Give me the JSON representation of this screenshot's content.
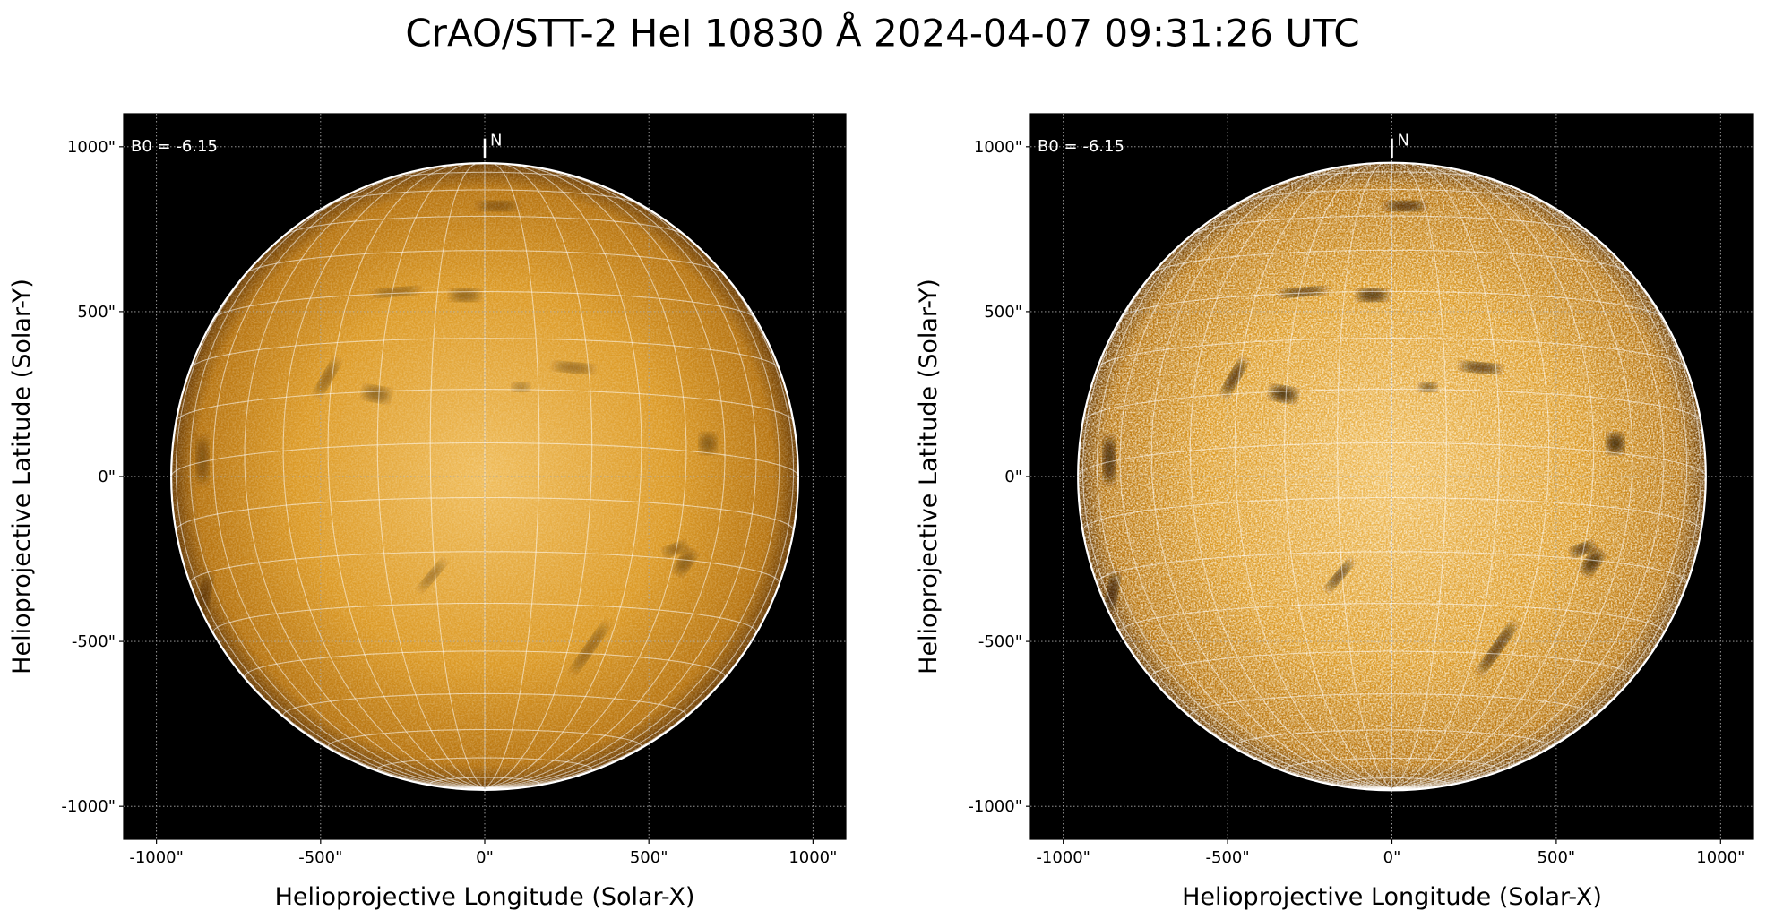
{
  "title": "CrAO/STT-2 HeI 10830 Å 2024-04-07 09:31:26 UTC",
  "chart_data": [
    {
      "type": "image",
      "xlabel": "Helioprojective Longitude (Solar-X)",
      "ylabel": "Helioprojective Latitude (Solar-Y)",
      "xlim": [
        -1100,
        1100
      ],
      "ylim": [
        -1100,
        1100
      ],
      "xticks": [
        {
          "value": -1000,
          "label": "-1000\""
        },
        {
          "value": -500,
          "label": "-500\""
        },
        {
          "value": 0,
          "label": "0\""
        },
        {
          "value": 500,
          "label": "500\""
        },
        {
          "value": 1000,
          "label": "1000\""
        }
      ],
      "yticks": [
        {
          "value": -1000,
          "label": "-1000\""
        },
        {
          "value": -500,
          "label": "-500\""
        },
        {
          "value": 0,
          "label": "0\""
        },
        {
          "value": 500,
          "label": "500\""
        },
        {
          "value": 1000,
          "label": "1000\""
        }
      ],
      "grid": true,
      "annotations": [
        "B0 = -6.15",
        "N"
      ],
      "b0": -6.15,
      "disk_radius": 955,
      "heliographic_grid_deg": 10,
      "contrast": 1.0
    },
    {
      "type": "image",
      "xlabel": "Helioprojective Longitude (Solar-X)",
      "ylabel": "Helioprojective Latitude (Solar-Y)",
      "xlim": [
        -1100,
        1100
      ],
      "ylim": [
        -1100,
        1100
      ],
      "xticks": [
        {
          "value": -1000,
          "label": "-1000\""
        },
        {
          "value": -500,
          "label": "-500\""
        },
        {
          "value": 0,
          "label": "0\""
        },
        {
          "value": 500,
          "label": "500\""
        },
        {
          "value": 1000,
          "label": "1000\""
        }
      ],
      "yticks": [
        {
          "value": -1000,
          "label": "-1000\""
        },
        {
          "value": -500,
          "label": "-500\""
        },
        {
          "value": 0,
          "label": "0\""
        },
        {
          "value": 500,
          "label": "500\""
        },
        {
          "value": 1000,
          "label": "1000\""
        }
      ],
      "grid": true,
      "annotations": [
        "B0 = -6.15",
        "N"
      ],
      "b0": -6.15,
      "disk_radius": 955,
      "heliographic_grid_deg": 10,
      "contrast": 1.8
    }
  ]
}
